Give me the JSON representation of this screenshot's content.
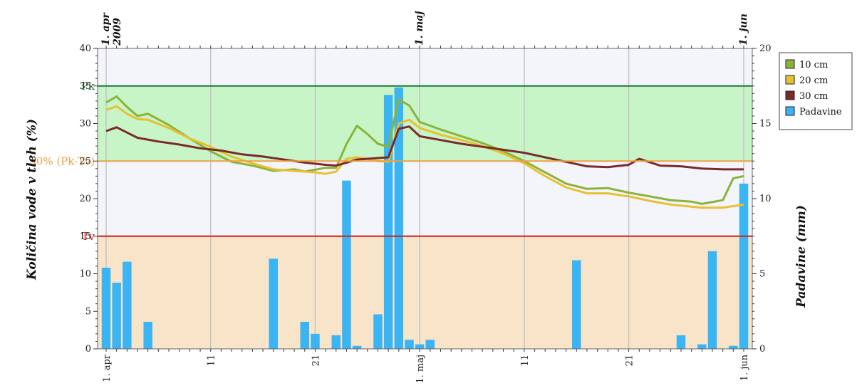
{
  "chart_data": {
    "type": "bar+line",
    "title": "",
    "ylabel": "Količina vode v tleh (%)",
    "y2label": "Padavine (mm)",
    "ylim": [
      0,
      40
    ],
    "y2lim": [
      0,
      20
    ],
    "yticks": [
      "0",
      "5",
      "10",
      "15",
      "20",
      "25",
      "30",
      "35",
      "40"
    ],
    "y2ticks": [
      "0",
      "5",
      "10",
      "15",
      "20"
    ],
    "x_start": "2009-04-01",
    "x_end": "2009-06-01",
    "xtick_labels": [
      {
        "date": "2009-04-01",
        "label": "1. apr"
      },
      {
        "date": "2009-04-11",
        "label": "11"
      },
      {
        "date": "2009-04-21",
        "label": "21"
      },
      {
        "date": "2009-05-01",
        "label": "1. maj"
      },
      {
        "date": "2009-05-11",
        "label": "11"
      },
      {
        "date": "2009-05-21",
        "label": "21"
      },
      {
        "date": "2009-06-01",
        "label": "1. jun"
      }
    ],
    "top_labels": [
      {
        "date": "2009-04-01",
        "line1": "1. apr",
        "line2": "2009"
      },
      {
        "date": "2009-05-01",
        "line1": "1. maj",
        "line2": ""
      },
      {
        "date": "2009-06-01",
        "line1": "1. jun",
        "line2": ""
      }
    ],
    "reference_lines": [
      {
        "label": "Pk",
        "value": 35,
        "color": "#1a7a3a"
      },
      {
        "label": "50% (Pk-Tv)",
        "value": 25,
        "color": "#f0a040"
      },
      {
        "label": "Tv",
        "value": 15,
        "color": "#d42020"
      }
    ],
    "bands": [
      {
        "from": 25,
        "to": 35,
        "color": "#c8f5c8"
      },
      {
        "from": 0,
        "to": 15,
        "color": "#f8e4c8"
      }
    ],
    "grid": true,
    "legend_position": "right",
    "series": [
      {
        "name": "10 cm",
        "type": "line",
        "axis": "left",
        "color": "#8bb33a",
        "points": [
          {
            "x": "2009-04-01",
            "y": 32.8
          },
          {
            "x": "2009-04-02",
            "y": 33.6
          },
          {
            "x": "2009-04-03",
            "y": 32.2
          },
          {
            "x": "2009-04-04",
            "y": 31.0
          },
          {
            "x": "2009-04-05",
            "y": 31.3
          },
          {
            "x": "2009-04-07",
            "y": 29.8
          },
          {
            "x": "2009-04-09",
            "y": 28.0
          },
          {
            "x": "2009-04-11",
            "y": 26.3
          },
          {
            "x": "2009-04-13",
            "y": 24.9
          },
          {
            "x": "2009-04-15",
            "y": 24.4
          },
          {
            "x": "2009-04-17",
            "y": 23.7
          },
          {
            "x": "2009-04-19",
            "y": 23.9
          },
          {
            "x": "2009-04-20",
            "y": 23.6
          },
          {
            "x": "2009-04-22",
            "y": 24.1
          },
          {
            "x": "2009-04-23",
            "y": 24.1
          },
          {
            "x": "2009-04-24",
            "y": 27.3
          },
          {
            "x": "2009-04-25",
            "y": 29.7
          },
          {
            "x": "2009-04-26",
            "y": 28.6
          },
          {
            "x": "2009-04-27",
            "y": 27.3
          },
          {
            "x": "2009-04-28",
            "y": 26.9
          },
          {
            "x": "2009-04-29",
            "y": 33.2
          },
          {
            "x": "2009-04-30",
            "y": 32.4
          },
          {
            "x": "2009-05-01",
            "y": 30.2
          },
          {
            "x": "2009-05-03",
            "y": 29.2
          },
          {
            "x": "2009-05-05",
            "y": 28.3
          },
          {
            "x": "2009-05-07",
            "y": 27.4
          },
          {
            "x": "2009-05-09",
            "y": 26.3
          },
          {
            "x": "2009-05-11",
            "y": 25.0
          },
          {
            "x": "2009-05-13",
            "y": 23.5
          },
          {
            "x": "2009-05-15",
            "y": 22.0
          },
          {
            "x": "2009-05-17",
            "y": 21.3
          },
          {
            "x": "2009-05-19",
            "y": 21.4
          },
          {
            "x": "2009-05-21",
            "y": 20.8
          },
          {
            "x": "2009-05-23",
            "y": 20.3
          },
          {
            "x": "2009-05-25",
            "y": 19.8
          },
          {
            "x": "2009-05-27",
            "y": 19.6
          },
          {
            "x": "2009-05-28",
            "y": 19.3
          },
          {
            "x": "2009-05-30",
            "y": 19.8
          },
          {
            "x": "2009-05-31",
            "y": 22.7
          },
          {
            "x": "2009-06-01",
            "y": 23.0
          }
        ]
      },
      {
        "name": "20 cm",
        "type": "line",
        "axis": "left",
        "color": "#e8c030",
        "points": [
          {
            "x": "2009-04-01",
            "y": 31.8
          },
          {
            "x": "2009-04-02",
            "y": 32.3
          },
          {
            "x": "2009-04-03",
            "y": 31.3
          },
          {
            "x": "2009-04-04",
            "y": 30.6
          },
          {
            "x": "2009-04-05",
            "y": 30.5
          },
          {
            "x": "2009-04-07",
            "y": 29.4
          },
          {
            "x": "2009-04-09",
            "y": 28.0
          },
          {
            "x": "2009-04-11",
            "y": 26.9
          },
          {
            "x": "2009-04-13",
            "y": 25.6
          },
          {
            "x": "2009-04-15",
            "y": 24.7
          },
          {
            "x": "2009-04-17",
            "y": 23.9
          },
          {
            "x": "2009-04-19",
            "y": 23.7
          },
          {
            "x": "2009-04-21",
            "y": 23.5
          },
          {
            "x": "2009-04-22",
            "y": 23.3
          },
          {
            "x": "2009-04-23",
            "y": 23.6
          },
          {
            "x": "2009-04-24",
            "y": 25.3
          },
          {
            "x": "2009-04-25",
            "y": 25.5
          },
          {
            "x": "2009-04-26",
            "y": 25.3
          },
          {
            "x": "2009-04-27",
            "y": 25.0
          },
          {
            "x": "2009-04-28",
            "y": 24.9
          },
          {
            "x": "2009-04-29",
            "y": 30.0
          },
          {
            "x": "2009-04-30",
            "y": 30.5
          },
          {
            "x": "2009-05-01",
            "y": 29.4
          },
          {
            "x": "2009-05-03",
            "y": 28.5
          },
          {
            "x": "2009-05-05",
            "y": 27.8
          },
          {
            "x": "2009-05-07",
            "y": 27.0
          },
          {
            "x": "2009-05-09",
            "y": 26.0
          },
          {
            "x": "2009-05-11",
            "y": 24.7
          },
          {
            "x": "2009-05-13",
            "y": 23.0
          },
          {
            "x": "2009-05-15",
            "y": 21.5
          },
          {
            "x": "2009-05-17",
            "y": 20.7
          },
          {
            "x": "2009-05-19",
            "y": 20.7
          },
          {
            "x": "2009-05-21",
            "y": 20.3
          },
          {
            "x": "2009-05-23",
            "y": 19.7
          },
          {
            "x": "2009-05-25",
            "y": 19.2
          },
          {
            "x": "2009-05-28",
            "y": 18.8
          },
          {
            "x": "2009-05-30",
            "y": 18.8
          },
          {
            "x": "2009-06-01",
            "y": 19.2
          }
        ]
      },
      {
        "name": "30 cm",
        "type": "line",
        "axis": "left",
        "color": "#7a2a2a",
        "points": [
          {
            "x": "2009-04-01",
            "y": 29.0
          },
          {
            "x": "2009-04-02",
            "y": 29.5
          },
          {
            "x": "2009-04-03",
            "y": 28.8
          },
          {
            "x": "2009-04-04",
            "y": 28.1
          },
          {
            "x": "2009-04-06",
            "y": 27.6
          },
          {
            "x": "2009-04-08",
            "y": 27.2
          },
          {
            "x": "2009-04-10",
            "y": 26.7
          },
          {
            "x": "2009-04-12",
            "y": 26.4
          },
          {
            "x": "2009-04-14",
            "y": 25.9
          },
          {
            "x": "2009-04-16",
            "y": 25.6
          },
          {
            "x": "2009-04-18",
            "y": 25.2
          },
          {
            "x": "2009-04-20",
            "y": 24.8
          },
          {
            "x": "2009-04-22",
            "y": 24.5
          },
          {
            "x": "2009-04-23",
            "y": 24.4
          },
          {
            "x": "2009-04-24",
            "y": 24.8
          },
          {
            "x": "2009-04-25",
            "y": 25.2
          },
          {
            "x": "2009-04-27",
            "y": 25.4
          },
          {
            "x": "2009-04-28",
            "y": 25.5
          },
          {
            "x": "2009-04-29",
            "y": 29.3
          },
          {
            "x": "2009-04-30",
            "y": 29.6
          },
          {
            "x": "2009-05-01",
            "y": 28.3
          },
          {
            "x": "2009-05-03",
            "y": 27.8
          },
          {
            "x": "2009-05-05",
            "y": 27.3
          },
          {
            "x": "2009-05-07",
            "y": 26.9
          },
          {
            "x": "2009-05-09",
            "y": 26.5
          },
          {
            "x": "2009-05-11",
            "y": 26.1
          },
          {
            "x": "2009-05-13",
            "y": 25.5
          },
          {
            "x": "2009-05-15",
            "y": 24.9
          },
          {
            "x": "2009-05-17",
            "y": 24.3
          },
          {
            "x": "2009-05-19",
            "y": 24.2
          },
          {
            "x": "2009-05-21",
            "y": 24.5
          },
          {
            "x": "2009-05-22",
            "y": 25.3
          },
          {
            "x": "2009-05-24",
            "y": 24.4
          },
          {
            "x": "2009-05-26",
            "y": 24.3
          },
          {
            "x": "2009-05-28",
            "y": 24.0
          },
          {
            "x": "2009-05-30",
            "y": 23.9
          },
          {
            "x": "2009-06-01",
            "y": 23.9
          }
        ]
      },
      {
        "name": "Padavine",
        "type": "bar",
        "axis": "right",
        "color": "#3ab4f2",
        "points": [
          {
            "x": "2009-04-01",
            "y": 5.4
          },
          {
            "x": "2009-04-02",
            "y": 4.4
          },
          {
            "x": "2009-04-03",
            "y": 5.8
          },
          {
            "x": "2009-04-05",
            "y": 1.8
          },
          {
            "x": "2009-04-17",
            "y": 6.0
          },
          {
            "x": "2009-04-20",
            "y": 1.8
          },
          {
            "x": "2009-04-21",
            "y": 1.0
          },
          {
            "x": "2009-04-23",
            "y": 0.9
          },
          {
            "x": "2009-04-24",
            "y": 11.2
          },
          {
            "x": "2009-04-25",
            "y": 0.2
          },
          {
            "x": "2009-04-27",
            "y": 2.3
          },
          {
            "x": "2009-04-28",
            "y": 16.9
          },
          {
            "x": "2009-04-29",
            "y": 17.4
          },
          {
            "x": "2009-04-30",
            "y": 0.6
          },
          {
            "x": "2009-05-01",
            "y": 0.3
          },
          {
            "x": "2009-05-02",
            "y": 0.6
          },
          {
            "x": "2009-05-16",
            "y": 5.9
          },
          {
            "x": "2009-05-26",
            "y": 0.9
          },
          {
            "x": "2009-05-28",
            "y": 0.3
          },
          {
            "x": "2009-05-29",
            "y": 6.5
          },
          {
            "x": "2009-05-31",
            "y": 0.2
          },
          {
            "x": "2009-06-01",
            "y": 11.0
          }
        ]
      }
    ]
  }
}
